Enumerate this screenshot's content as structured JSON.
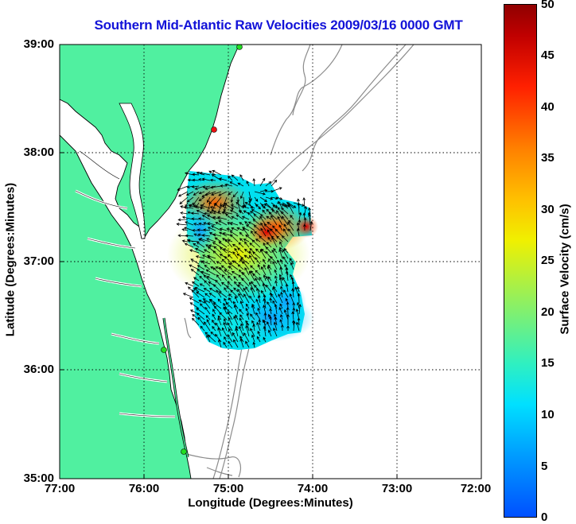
{
  "title": "Southern Mid-Atlantic Raw Velocities 2009/03/16 0000 GMT",
  "axes": {
    "xlabel": "Longitude (Degrees:Minutes)",
    "ylabel": "Latitude (Degrees:Minutes)",
    "xticks": [
      "77:00",
      "76:00",
      "75:00",
      "74:00",
      "73:00",
      "72:00"
    ],
    "yticks": [
      "39:00",
      "38:00",
      "37:00",
      "36:00",
      "35:00"
    ]
  },
  "colorbar": {
    "label": "Surface Velocity (cm/s)",
    "ticks": [
      "50",
      "45",
      "40",
      "35",
      "30",
      "25",
      "20",
      "15",
      "10",
      "5",
      "0"
    ]
  },
  "colors": {
    "land": "#50f0a0",
    "title": "#1212d8",
    "bathymetry": "#8c8c8c",
    "station_green": "#22dd22",
    "station_red": "#ee1111"
  }
}
